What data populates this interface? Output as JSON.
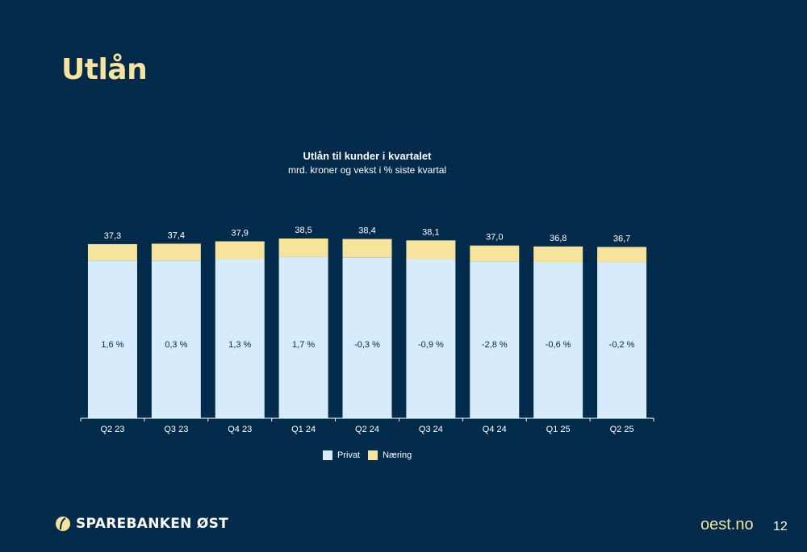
{
  "page": {
    "title": "Utlån",
    "logo_text": "SPAREBANKEN ØST",
    "website": "oest.no",
    "page_number": "12"
  },
  "colors": {
    "background": "#022a4a",
    "privat": "#d6ecfc",
    "naering": "#f6e39c",
    "title": "#f6e39c"
  },
  "chart_data": {
    "type": "bar",
    "stacked": true,
    "title": "Utlån til kunder i kvartalet",
    "subtitle": "mrd. kroner og vekst i % siste kvartal",
    "categories": [
      "Q2 23",
      "Q3 23",
      "Q4 23",
      "Q1 24",
      "Q2 24",
      "Q3 24",
      "Q4 24",
      "Q1 25",
      "Q2 25"
    ],
    "totals": [
      37.3,
      37.4,
      37.9,
      38.5,
      38.4,
      38.1,
      37.0,
      36.8,
      36.7
    ],
    "total_labels": [
      "37,3",
      "37,4",
      "37,9",
      "38,5",
      "38,4",
      "38,1",
      "37,0",
      "36,8",
      "36,7"
    ],
    "growth_labels": [
      "1,6 %",
      "0,3 %",
      "1,3 %",
      "1,7 %",
      "-0,3 %",
      "-0,9 %",
      "-2,8 %",
      "-0,6 %",
      "-0,2 %"
    ],
    "series": [
      {
        "name": "Privat",
        "color": "#d6ecfc",
        "values": [
          33.8,
          33.8,
          34.1,
          34.6,
          34.4,
          34.1,
          33.6,
          33.5,
          33.4
        ]
      },
      {
        "name": "Næring",
        "color": "#f6e39c",
        "values": [
          3.5,
          3.6,
          3.8,
          3.9,
          4.0,
          4.0,
          3.4,
          3.3,
          3.3
        ]
      }
    ],
    "ylim": [
      0,
      38.5
    ],
    "legend_position": "bottom",
    "grid": false
  }
}
